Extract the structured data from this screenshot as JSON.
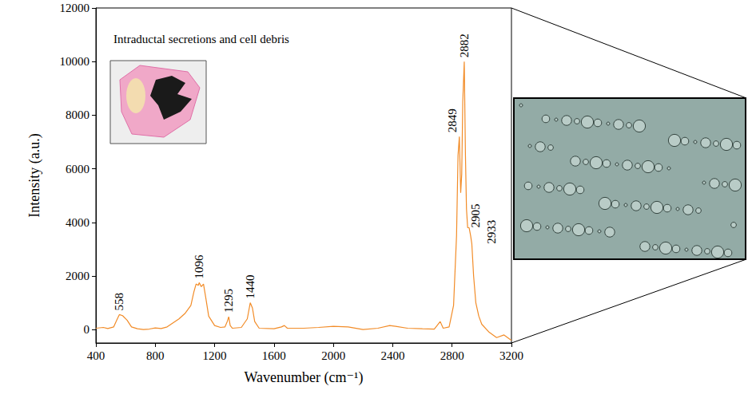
{
  "chart_data": {
    "type": "line",
    "title": "Intraductal secretions and cell debris",
    "x_label": "Wavenumber (cm⁻¹)",
    "y_label": "Intensity (a.u.)",
    "color": "#f28c28",
    "grid": false,
    "x": [
      400,
      450,
      480,
      520,
      540,
      558,
      580,
      610,
      640,
      680,
      720,
      760,
      800,
      840,
      880,
      920,
      960,
      1000,
      1040,
      1060,
      1075,
      1090,
      1096,
      1110,
      1125,
      1140,
      1160,
      1200,
      1240,
      1270,
      1285,
      1295,
      1305,
      1320,
      1380,
      1420,
      1440,
      1455,
      1470,
      1500,
      1600,
      1650,
      1670,
      1690,
      1800,
      1900,
      2000,
      2100,
      2200,
      2300,
      2380,
      2420,
      2500,
      2600,
      2680,
      2720,
      2740,
      2780,
      2810,
      2830,
      2840,
      2849,
      2858,
      2865,
      2872,
      2882,
      2890,
      2897,
      2905,
      2915,
      2925,
      2933,
      2945,
      2960,
      2980,
      3000,
      3050,
      3100,
      3150,
      3200
    ],
    "values": [
      50,
      80,
      40,
      100,
      350,
      560,
      520,
      350,
      100,
      30,
      0,
      20,
      60,
      40,
      100,
      250,
      400,
      600,
      900,
      1400,
      1700,
      1650,
      1750,
      1600,
      1700,
      1200,
      500,
      150,
      80,
      100,
      300,
      480,
      150,
      50,
      80,
      400,
      1000,
      800,
      300,
      50,
      30,
      100,
      150,
      50,
      50,
      80,
      120,
      100,
      0,
      50,
      150,
      120,
      50,
      30,
      20,
      300,
      50,
      100,
      900,
      3500,
      6500,
      7200,
      5100,
      5800,
      8500,
      10000,
      6500,
      4500,
      3800,
      3800,
      3500,
      3200,
      2000,
      1000,
      500,
      200,
      -100,
      -300,
      -200,
      -400
    ],
    "xlim": [
      400,
      3200
    ],
    "xticks": [
      400,
      800,
      1200,
      1600,
      2000,
      2400,
      2800,
      3200
    ],
    "ylim": [
      -500,
      12000
    ],
    "yticks": [
      0,
      2000,
      4000,
      6000,
      8000,
      10000,
      12000
    ],
    "peaks": [
      {
        "x": 558,
        "y": 560
      },
      {
        "x": 1096,
        "y": 1750
      },
      {
        "x": 1295,
        "y": 480
      },
      {
        "x": 1440,
        "y": 1000
      },
      {
        "x": 2849,
        "y": 7200
      },
      {
        "x": 2882,
        "y": 10000
      },
      {
        "x": 2905,
        "y": 3800
      },
      {
        "x": 2933,
        "y": 3200
      }
    ]
  }
}
